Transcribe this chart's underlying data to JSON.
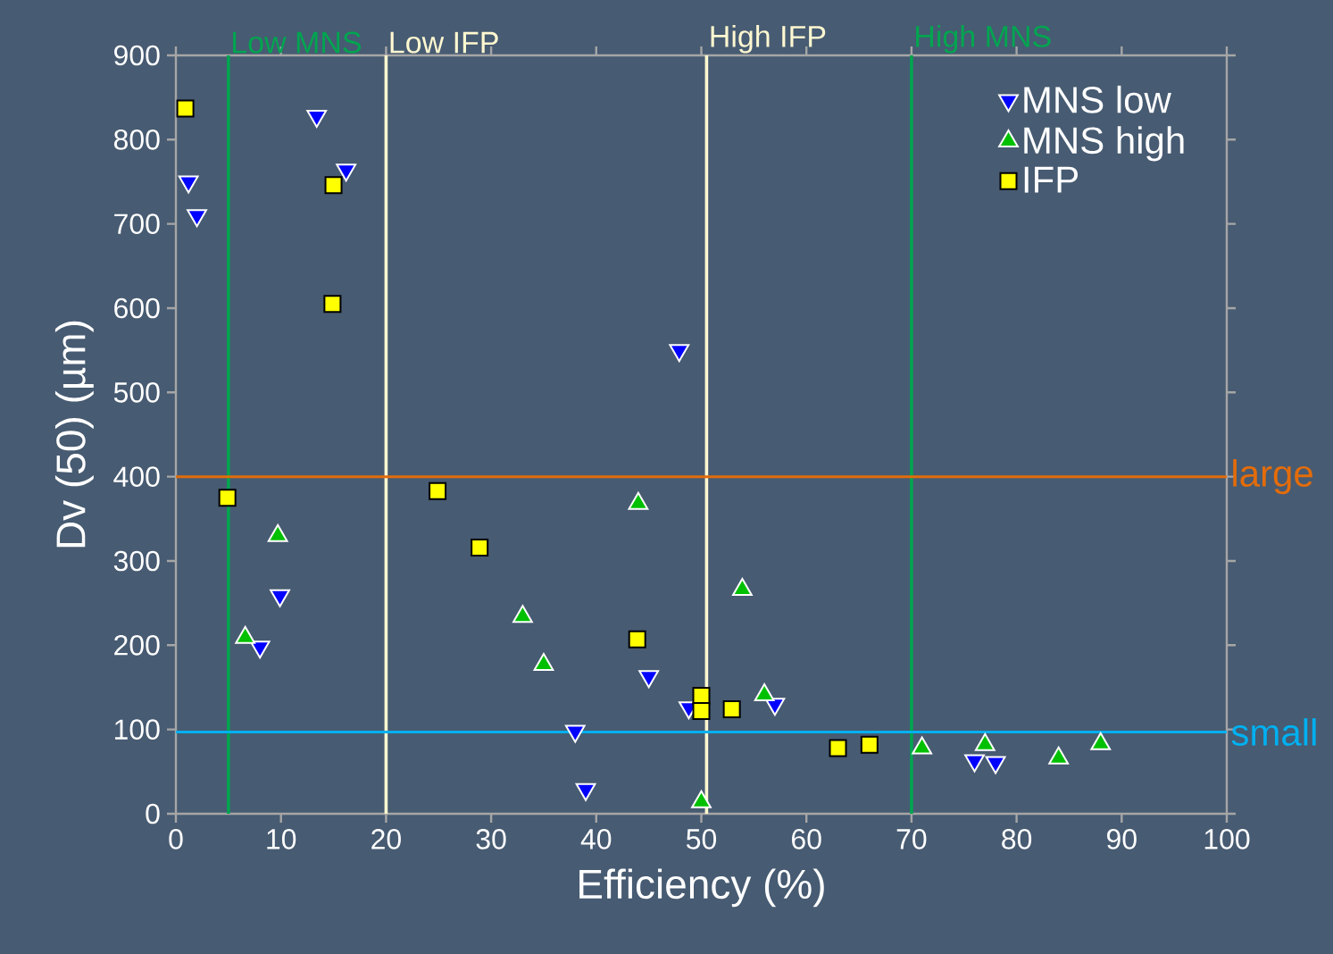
{
  "chart_data": {
    "type": "scatter",
    "xlabel": "Efficiency (%)",
    "ylabel": "Dv (50) (µm)",
    "xlim": [
      0,
      100
    ],
    "ylim": [
      0,
      900
    ],
    "xticks": [
      0,
      10,
      20,
      30,
      40,
      50,
      60,
      70,
      80,
      90,
      100
    ],
    "yticks": [
      0,
      100,
      200,
      300,
      400,
      500,
      600,
      700,
      800,
      900
    ],
    "grid": false,
    "legend": "top right",
    "series": [
      {
        "name": "MNS low",
        "color": "#0000ff",
        "marker": "triangle-down",
        "x": [
          1.2,
          2,
          13.4,
          16.2,
          9.9,
          8,
          47.9,
          45,
          48.8,
          38,
          39,
          57,
          76,
          78
        ],
        "values": [
          750,
          710,
          828,
          764,
          259,
          198,
          550,
          163,
          126,
          98,
          29,
          130,
          63,
          61
        ]
      },
      {
        "name": "MNS high",
        "color": "#00c000",
        "marker": "triangle",
        "x": [
          6.6,
          9.7,
          33,
          35,
          44,
          53.9,
          56,
          50,
          71,
          77,
          84,
          88
        ],
        "values": [
          209,
          330,
          234,
          177,
          368,
          266,
          141,
          14,
          78,
          82,
          66,
          83
        ]
      },
      {
        "name": "IFP",
        "color": "#ffff00",
        "marker": "square",
        "x": [
          0.9,
          15,
          14.9,
          4.9,
          24.9,
          28.9,
          43.9,
          50,
          50,
          52.9,
          63,
          66
        ],
        "values": [
          837,
          746,
          605,
          375,
          383,
          316,
          207,
          140,
          122,
          124,
          78,
          82
        ]
      }
    ],
    "ref_lines": [
      {
        "axis": "x",
        "value": 5,
        "label": "Low MNS",
        "color": "#00a550"
      },
      {
        "axis": "x",
        "value": 70,
        "label": "High MNS",
        "color": "#00a550"
      },
      {
        "axis": "x",
        "value": 20,
        "label": "Low IFP",
        "color": "#fff8d0"
      },
      {
        "axis": "x",
        "value": 50.5,
        "label": "High IFP",
        "color": "#fff8d0"
      },
      {
        "axis": "y",
        "value": 400,
        "label": "large",
        "color": "#e36c0a"
      },
      {
        "axis": "y",
        "value": 97,
        "label": "small",
        "color": "#00b0f0"
      }
    ]
  }
}
